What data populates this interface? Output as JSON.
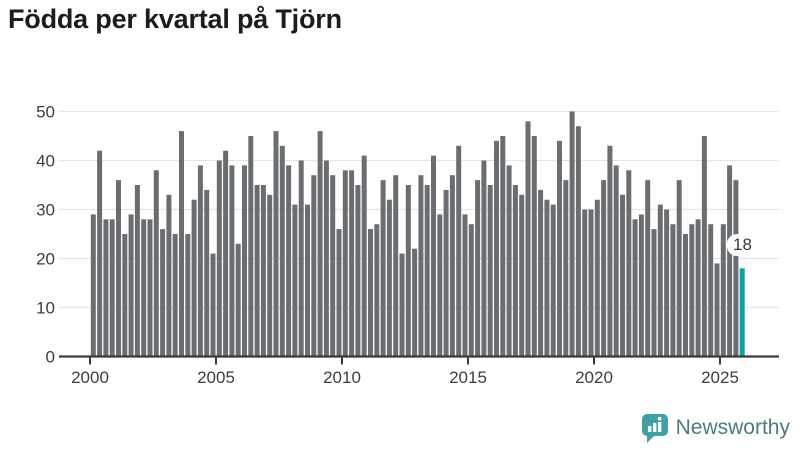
{
  "title": "Födda per kvartal på Tjörn",
  "annotation": {
    "label": "18"
  },
  "logo": {
    "text": "Newsworthy",
    "icon": "bar-chart-speech-bubble",
    "icon_color": "#3fa1a5",
    "text_color": "#4b7c82"
  },
  "chart_data": {
    "type": "bar",
    "title": "Födda per kvartal på Tjörn",
    "x_unit": "quarter",
    "x_start": "2000 Q1",
    "x_end": "2025 Q4",
    "x_tick_labels": [
      "2000",
      "2005",
      "2010",
      "2015",
      "2020",
      "2025"
    ],
    "y_ticks": [
      0,
      10,
      20,
      30,
      40,
      50
    ],
    "ylim": [
      0,
      50
    ],
    "grid": "horizontal",
    "legend": "none",
    "bar_color": "#6b6e70",
    "axis_color": "#3b3b3b",
    "gridline_color": "#e4e4e4",
    "highlight": {
      "index": 103,
      "quarter": "2025 Q4",
      "value": 18,
      "label": "18",
      "color": "#0aa3a6"
    },
    "values": [
      29,
      42,
      28,
      28,
      36,
      25,
      29,
      35,
      28,
      28,
      38,
      26,
      33,
      25,
      46,
      25,
      32,
      39,
      34,
      21,
      40,
      42,
      39,
      23,
      39,
      45,
      35,
      35,
      33,
      46,
      43,
      39,
      31,
      40,
      31,
      37,
      46,
      40,
      37,
      26,
      38,
      38,
      35,
      41,
      26,
      27,
      36,
      32,
      37,
      21,
      35,
      22,
      37,
      35,
      41,
      29,
      34,
      37,
      43,
      29,
      27,
      36,
      40,
      35,
      44,
      45,
      39,
      35,
      33,
      48,
      45,
      34,
      32,
      31,
      44,
      36,
      50,
      47,
      30,
      30,
      32,
      36,
      43,
      39,
      33,
      38,
      28,
      29,
      36,
      26,
      31,
      30,
      27,
      36,
      25,
      27,
      28,
      45,
      27,
      19,
      27,
      39,
      36,
      18
    ]
  }
}
